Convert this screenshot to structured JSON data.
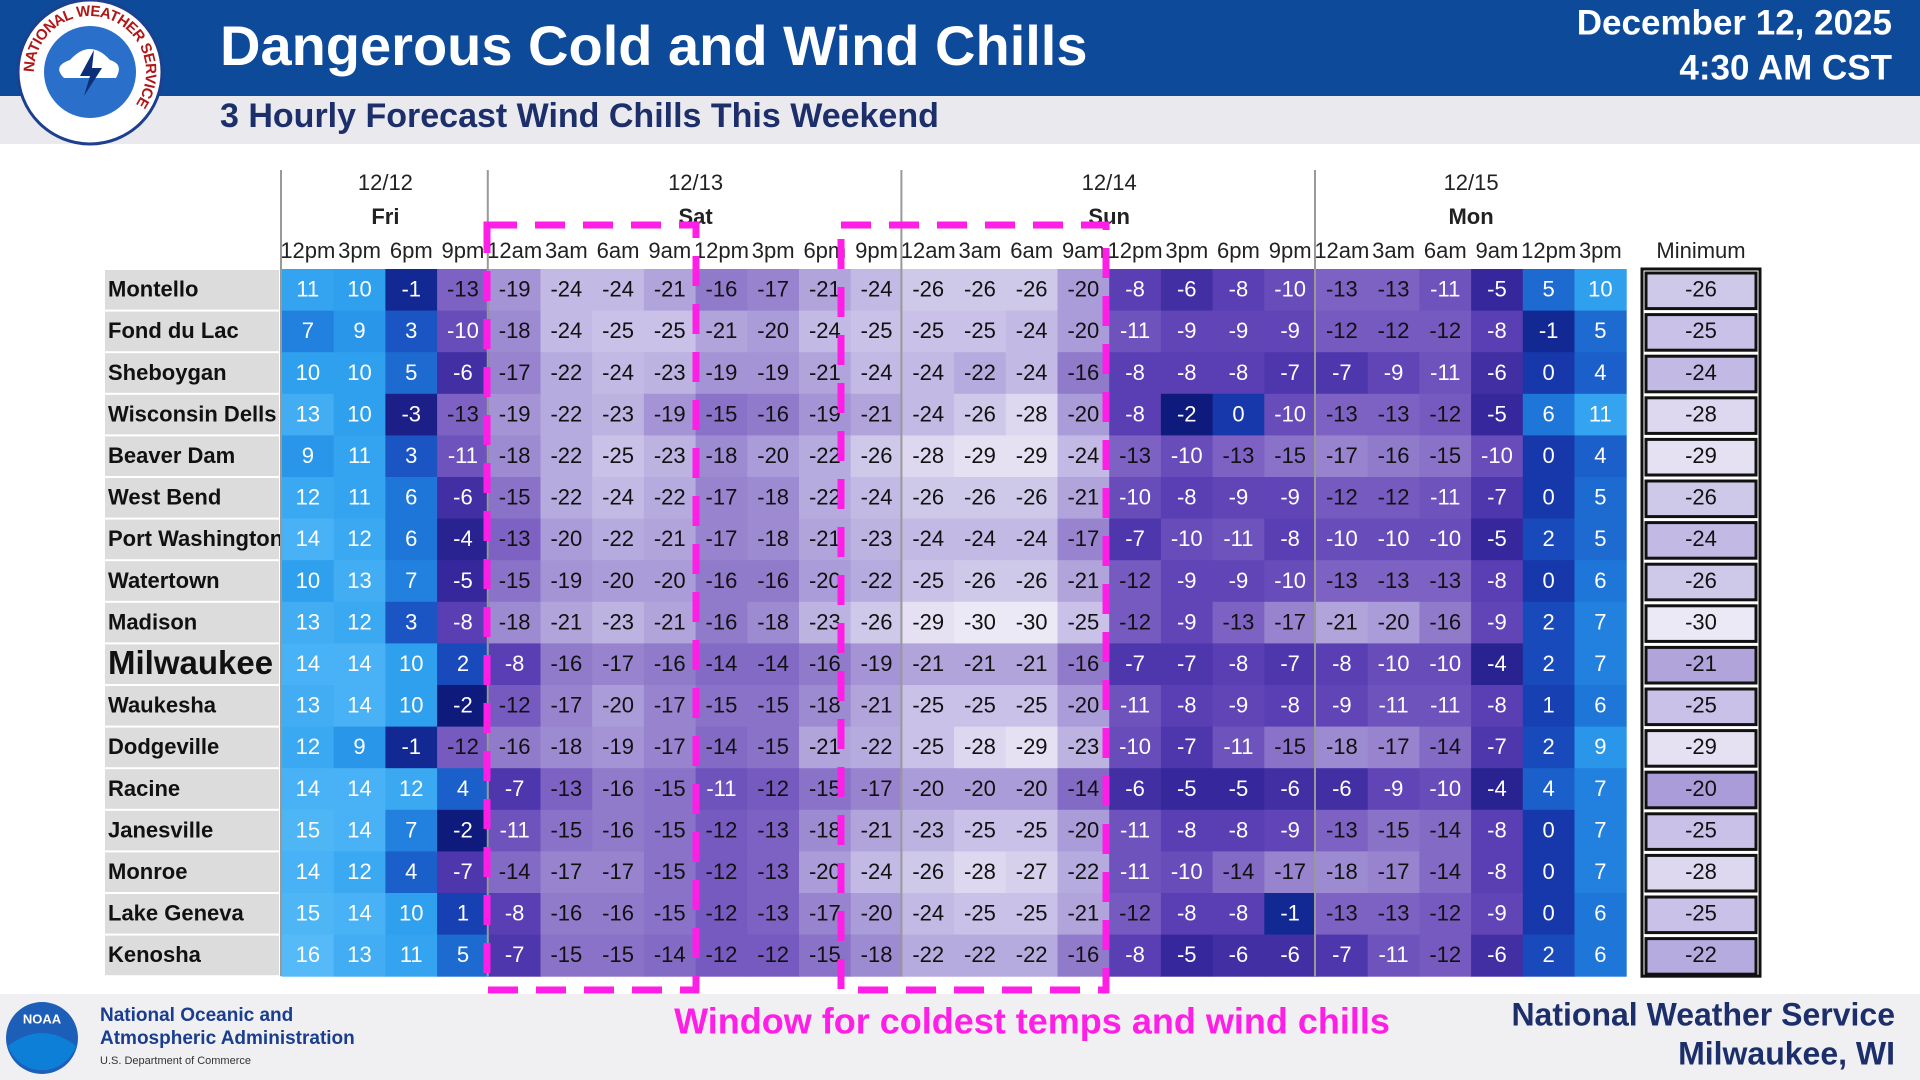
{
  "header": {
    "title": "Dangerous Cold and Wind Chills",
    "subtitle": "3 Hourly Forecast Wind Chills This Weekend",
    "date": "December 12, 2025",
    "time": "4:30 AM CST"
  },
  "logo": {
    "nws": "NATIONAL WEATHER SERVICE",
    "noaa": "NOAA"
  },
  "table": {
    "days": [
      {
        "date": "12/12",
        "day": "Fri",
        "hours": [
          "12pm",
          "3pm",
          "6pm",
          "9pm"
        ]
      },
      {
        "date": "12/13",
        "day": "Sat",
        "hours": [
          "12am",
          "3am",
          "6am",
          "9am",
          "12pm",
          "3pm",
          "6pm",
          "9pm"
        ]
      },
      {
        "date": "12/14",
        "day": "Sun",
        "hours": [
          "12am",
          "3am",
          "6am",
          "9am",
          "12pm",
          "3pm",
          "6pm",
          "9pm"
        ]
      },
      {
        "date": "12/15",
        "day": "Mon",
        "hours": [
          "12am",
          "3am",
          "6am",
          "9am",
          "12pm",
          "3pm"
        ]
      }
    ],
    "minimum_label": "Minimum",
    "rows": [
      {
        "name": "Montello",
        "values": [
          11,
          10,
          -1,
          -13,
          -19,
          -24,
          -24,
          -21,
          -16,
          -17,
          -21,
          -24,
          -26,
          -26,
          -26,
          -20,
          -8,
          -6,
          -8,
          -10,
          -13,
          -13,
          -11,
          -5,
          5,
          10
        ],
        "minimum": -26
      },
      {
        "name": "Fond du Lac",
        "values": [
          7,
          9,
          3,
          -10,
          -18,
          -24,
          -25,
          -25,
          -21,
          -20,
          -24,
          -25,
          -25,
          -25,
          -24,
          -20,
          -11,
          -9,
          -9,
          -9,
          -12,
          -12,
          -12,
          -8,
          -1,
          5
        ],
        "minimum": -25
      },
      {
        "name": "Sheboygan",
        "values": [
          10,
          10,
          5,
          -6,
          -17,
          -22,
          -24,
          -23,
          -19,
          -19,
          -21,
          -24,
          -24,
          -22,
          -24,
          -16,
          -8,
          -8,
          -8,
          -7,
          -7,
          -9,
          -11,
          -6,
          0,
          4
        ],
        "minimum": -24
      },
      {
        "name": "Wisconsin Dells",
        "values": [
          13,
          10,
          -3,
          -13,
          -19,
          -22,
          -23,
          -19,
          -15,
          -16,
          -19,
          -21,
          -24,
          -26,
          -28,
          -20,
          -8,
          -2,
          0,
          -10,
          -13,
          -13,
          -12,
          -5,
          6,
          11
        ],
        "minimum": -28
      },
      {
        "name": "Beaver Dam",
        "values": [
          9,
          11,
          3,
          -11,
          -18,
          -22,
          -25,
          -23,
          -18,
          -20,
          -22,
          -26,
          -28,
          -29,
          -29,
          -24,
          -13,
          -10,
          -13,
          -15,
          -17,
          -16,
          -15,
          -10,
          0,
          4
        ],
        "minimum": -29
      },
      {
        "name": "West Bend",
        "values": [
          12,
          11,
          6,
          -6,
          -15,
          -22,
          -24,
          -22,
          -17,
          -18,
          -22,
          -24,
          -26,
          -26,
          -26,
          -21,
          -10,
          -8,
          -9,
          -9,
          -12,
          -12,
          -11,
          -7,
          0,
          5
        ],
        "minimum": -26
      },
      {
        "name": "Port Washington",
        "values": [
          14,
          12,
          6,
          -4,
          -13,
          -20,
          -22,
          -21,
          -17,
          -18,
          -21,
          -23,
          -24,
          -24,
          -24,
          -17,
          -7,
          -10,
          -11,
          -8,
          -10,
          -10,
          -10,
          -5,
          2,
          5
        ],
        "minimum": -24
      },
      {
        "name": "Watertown",
        "values": [
          10,
          13,
          7,
          -5,
          -15,
          -19,
          -20,
          -20,
          -16,
          -16,
          -20,
          -22,
          -25,
          -26,
          -26,
          -21,
          -12,
          -9,
          -9,
          -10,
          -13,
          -13,
          -13,
          -8,
          0,
          6
        ],
        "minimum": -26
      },
      {
        "name": "Madison",
        "values": [
          13,
          12,
          3,
          -8,
          -18,
          -21,
          -23,
          -21,
          -16,
          -18,
          -23,
          -26,
          -29,
          -30,
          -30,
          -25,
          -12,
          -9,
          -13,
          -17,
          -21,
          -20,
          -16,
          -9,
          2,
          7
        ],
        "minimum": -30
      },
      {
        "name": "Milwaukee",
        "values": [
          14,
          14,
          10,
          2,
          -8,
          -16,
          -17,
          -16,
          -14,
          -14,
          -16,
          -19,
          -21,
          -21,
          -21,
          -16,
          -7,
          -7,
          -8,
          -7,
          -8,
          -10,
          -10,
          -4,
          2,
          7
        ],
        "minimum": -21
      },
      {
        "name": "Waukesha",
        "values": [
          13,
          14,
          10,
          -2,
          -12,
          -17,
          -20,
          -17,
          -15,
          -15,
          -18,
          -21,
          -25,
          -25,
          -25,
          -20,
          -11,
          -8,
          -9,
          -8,
          -9,
          -11,
          -11,
          -8,
          1,
          6
        ],
        "minimum": -25
      },
      {
        "name": "Dodgeville",
        "values": [
          12,
          9,
          -1,
          -12,
          -16,
          -18,
          -19,
          -17,
          -14,
          -15,
          -21,
          -22,
          -25,
          -28,
          -29,
          -23,
          -10,
          -7,
          -11,
          -15,
          -18,
          -17,
          -14,
          -7,
          2,
          9
        ],
        "minimum": -29
      },
      {
        "name": "Racine",
        "values": [
          14,
          14,
          12,
          4,
          -7,
          -13,
          -16,
          -15,
          -11,
          -12,
          -15,
          -17,
          -20,
          -20,
          -20,
          -14,
          -6,
          -5,
          -5,
          -6,
          -6,
          -9,
          -10,
          -4,
          4,
          7
        ],
        "minimum": -20
      },
      {
        "name": "Janesville",
        "values": [
          15,
          14,
          7,
          -2,
          -11,
          -15,
          -16,
          -15,
          -12,
          -13,
          -18,
          -21,
          -23,
          -25,
          -25,
          -20,
          -11,
          -8,
          -8,
          -9,
          -13,
          -15,
          -14,
          -8,
          0,
          7
        ],
        "minimum": -25
      },
      {
        "name": "Monroe",
        "values": [
          14,
          12,
          4,
          -7,
          -14,
          -17,
          -17,
          -15,
          -12,
          -13,
          -20,
          -24,
          -26,
          -28,
          -27,
          -22,
          -11,
          -10,
          -14,
          -17,
          -18,
          -17,
          -14,
          -8,
          0,
          7
        ],
        "minimum": -28
      },
      {
        "name": "Lake Geneva",
        "values": [
          15,
          14,
          10,
          1,
          -8,
          -16,
          -16,
          -15,
          -12,
          -13,
          -17,
          -20,
          -24,
          -25,
          -25,
          -21,
          -12,
          -8,
          -8,
          -1,
          -13,
          -13,
          -12,
          -9,
          0,
          6
        ],
        "minimum": -25
      },
      {
        "name": "Kenosha",
        "values": [
          16,
          13,
          11,
          5,
          -7,
          -15,
          -15,
          -14,
          -12,
          -12,
          -15,
          -18,
          -22,
          -22,
          -22,
          -16,
          -8,
          -5,
          -6,
          -6,
          -7,
          -11,
          -12,
          -6,
          2,
          6
        ],
        "minimum": -22
      }
    ]
  },
  "annotation": "Window for coldest temps and wind chills",
  "footer": {
    "agency_lines": [
      "National Oceanic and",
      "Atmospheric Administration"
    ],
    "department": "U.S. Department of Commerce",
    "office": "National Weather Service",
    "location": "Milwaukee, WI"
  }
}
